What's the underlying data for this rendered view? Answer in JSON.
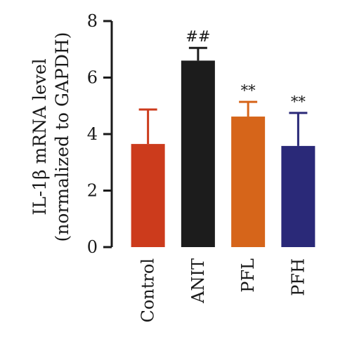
{
  "chart_data": {
    "type": "bar",
    "categories": [
      "Control",
      "ANIT",
      "PFL",
      "PFH"
    ],
    "values": [
      3.65,
      6.6,
      4.62,
      3.58
    ],
    "errors": [
      1.22,
      0.45,
      0.52,
      1.17
    ],
    "colors": [
      "#cc3b1c",
      "#1c1c1c",
      "#d6651a",
      "#2a2978"
    ],
    "annotations": [
      "",
      "##",
      "**",
      "**"
    ],
    "ylabel_line1": "IL-1β mRNA level",
    "ylabel_line2": "(normalized to GAPDH)",
    "ylim": [
      0,
      8
    ],
    "yticks": [
      0,
      2,
      4,
      6,
      8
    ],
    "ytick_labels": [
      "0",
      "2",
      "4",
      "6",
      "8"
    ],
    "grid": false,
    "legend": "none"
  }
}
